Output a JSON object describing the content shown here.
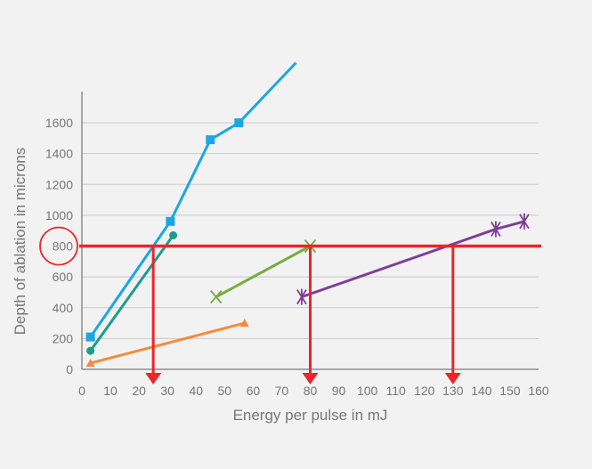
{
  "chart_data": {
    "type": "line",
    "xlabel": "Energy per pulse in mJ",
    "ylabel": "Depth of ablation in microns",
    "xlim": [
      0,
      160
    ],
    "ylim": [
      0,
      1600
    ],
    "x_ticks": [
      0,
      10,
      20,
      30,
      40,
      50,
      60,
      70,
      80,
      90,
      100,
      110,
      120,
      130,
      140,
      150,
      160
    ],
    "y_ticks": [
      0,
      200,
      400,
      600,
      800,
      1000,
      1200,
      1400,
      1600
    ],
    "grid": "horizontal",
    "series": [
      {
        "color": "#1ba7e1",
        "marker": "square",
        "points": [
          [
            3,
            210
          ],
          [
            31,
            960
          ],
          [
            45,
            1490
          ],
          [
            55,
            1600
          ],
          [
            75,
            1990
          ]
        ],
        "markers_on": [
          0,
          1,
          2,
          3
        ]
      },
      {
        "color": "#1a9e8a",
        "marker": "circle",
        "points": [
          [
            3,
            120
          ],
          [
            32,
            870
          ]
        ],
        "markers_on": [
          0,
          1
        ]
      },
      {
        "color": "#f28c3c",
        "marker": "triangle",
        "points": [
          [
            3,
            40
          ],
          [
            57,
            300
          ]
        ],
        "markers_on": [
          0,
          1
        ]
      },
      {
        "color": "#77ad3e",
        "marker": "x",
        "points": [
          [
            47,
            470
          ],
          [
            80,
            800
          ]
        ],
        "markers_on": [
          0,
          1
        ]
      },
      {
        "color": "#7d3f98",
        "marker": "asterisk",
        "points": [
          [
            77,
            470
          ],
          [
            145,
            910
          ],
          [
            155,
            960
          ]
        ],
        "markers_on": [
          0,
          1,
          2
        ]
      }
    ],
    "threshold": {
      "color": "#e8262b",
      "y": 800,
      "drop_x": [
        25,
        80,
        130
      ],
      "highlight_tick": 800
    }
  }
}
